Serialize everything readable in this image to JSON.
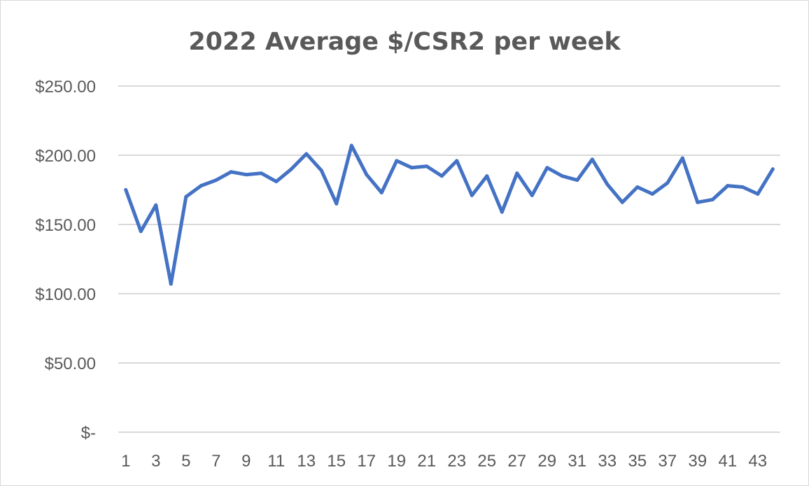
{
  "chart_data": {
    "type": "line",
    "title": "2022 Average $/CSR2 per week",
    "xlabel": "",
    "ylabel": "",
    "ylim": [
      0,
      250
    ],
    "yticks": [
      {
        "value": 250,
        "label": "$250.00"
      },
      {
        "value": 200,
        "label": "$200.00"
      },
      {
        "value": 150,
        "label": "$150.00"
      },
      {
        "value": 100,
        "label": "$100.00"
      },
      {
        "value": 50,
        "label": "$50.00"
      },
      {
        "value": 0,
        "label": "$-"
      }
    ],
    "x": [
      1,
      2,
      3,
      4,
      5,
      6,
      7,
      8,
      9,
      10,
      11,
      12,
      13,
      14,
      15,
      16,
      17,
      18,
      19,
      20,
      21,
      22,
      23,
      24,
      25,
      26,
      27,
      28,
      29,
      30,
      31,
      32,
      33,
      34,
      35,
      36,
      37,
      38,
      39,
      40,
      41,
      42,
      43,
      44
    ],
    "xtick_labels": [
      "1",
      "3",
      "5",
      "7",
      "9",
      "11",
      "13",
      "15",
      "17",
      "19",
      "21",
      "23",
      "25",
      "27",
      "29",
      "31",
      "33",
      "35",
      "37",
      "39",
      "41",
      "43"
    ],
    "grid": true,
    "legend": "none",
    "series": [
      {
        "color": "#4472c4",
        "values": [
          175,
          145,
          164,
          107,
          170,
          178,
          182,
          188,
          186,
          187,
          181,
          190,
          201,
          189,
          165,
          207,
          186,
          173,
          196,
          191,
          192,
          185,
          196,
          171,
          185,
          159,
          187,
          171,
          191,
          185,
          182,
          197,
          179,
          166,
          177,
          172,
          180,
          198,
          166,
          168,
          178,
          177,
          172,
          190
        ]
      }
    ]
  }
}
